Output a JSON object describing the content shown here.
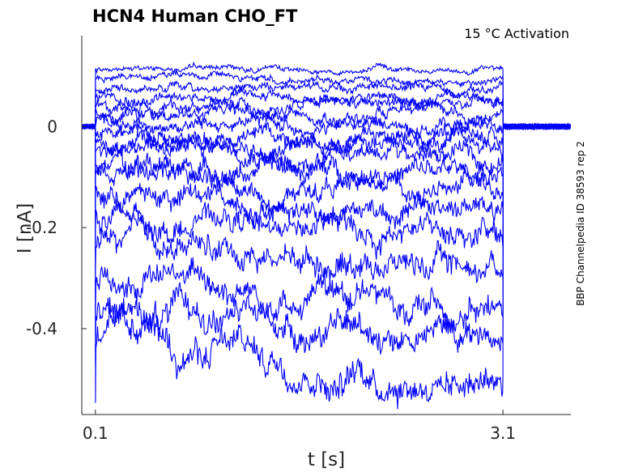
{
  "chart_data": {
    "type": "line",
    "title": "HCN4  Human  CHO_FT",
    "annotation": "15 °C  Activation",
    "side_label": "BBP Channelpedia ID 38593 rep 2",
    "xlabel": "t [s]",
    "ylabel": "I [nA]",
    "xlim": [
      0.0,
      3.6
    ],
    "ylim": [
      -0.57,
      0.18
    ],
    "x_ticks": [
      0.1,
      3.1
    ],
    "x_tick_labels": [
      "0.1",
      "3.1"
    ],
    "y_ticks": [
      0,
      -0.2,
      -0.4
    ],
    "y_tick_labels": [
      "0",
      "-0.2",
      "-0.4"
    ],
    "grid": false,
    "legend": "none",
    "color": "#0000ff",
    "stimulus": {
      "start": 0.1,
      "end": 3.1
    },
    "series": [
      {
        "values_at": [
          0.15,
          1.0,
          2.0,
          3.0
        ],
        "values": [
          0.114,
          0.114,
          0.114,
          0.114
        ]
      },
      {
        "values_at": [
          0.15,
          1.0,
          2.0,
          3.0
        ],
        "values": [
          0.095,
          0.095,
          0.095,
          0.095
        ]
      },
      {
        "values_at": [
          0.15,
          1.0,
          2.0,
          3.0
        ],
        "values": [
          0.077,
          0.077,
          0.076,
          0.076
        ]
      },
      {
        "values_at": [
          0.15,
          1.0,
          2.0,
          3.0
        ],
        "values": [
          0.058,
          0.058,
          0.057,
          0.057
        ]
      },
      {
        "values_at": [
          0.15,
          1.0,
          2.0,
          3.0
        ],
        "values": [
          0.042,
          0.041,
          0.04,
          0.04
        ]
      },
      {
        "values_at": [
          0.15,
          1.0,
          2.0,
          3.0
        ],
        "values": [
          0.024,
          0.022,
          0.021,
          0.02
        ]
      },
      {
        "values_at": [
          0.15,
          1.0,
          2.0,
          3.0
        ],
        "values": [
          0.006,
          0.004,
          0.002,
          0.001
        ]
      },
      {
        "values_at": [
          0.15,
          1.0,
          2.0,
          3.0
        ],
        "values": [
          -0.012,
          -0.015,
          -0.017,
          -0.019
        ]
      },
      {
        "values_at": [
          0.15,
          1.0,
          2.0,
          3.0
        ],
        "values": [
          -0.03,
          -0.034,
          -0.037,
          -0.04
        ]
      },
      {
        "values_at": [
          0.15,
          1.0,
          2.0,
          3.0
        ],
        "values": [
          -0.05,
          -0.056,
          -0.06,
          -0.064
        ]
      },
      {
        "values_at": [
          0.15,
          1.0,
          2.0,
          3.0
        ],
        "values": [
          -0.075,
          -0.083,
          -0.089,
          -0.094
        ]
      },
      {
        "values_at": [
          0.15,
          1.0,
          2.0,
          3.0
        ],
        "values": [
          -0.1,
          -0.112,
          -0.12,
          -0.127
        ]
      },
      {
        "values_at": [
          0.15,
          1.0,
          2.0,
          3.0
        ],
        "values": [
          -0.131,
          -0.146,
          -0.156,
          -0.165
        ]
      },
      {
        "values_at": [
          0.15,
          1.0,
          2.0,
          3.0
        ],
        "values": [
          -0.176,
          -0.19,
          -0.205,
          -0.21
        ]
      },
      {
        "values_at": [
          0.15,
          1.0,
          2.0,
          3.0
        ],
        "values": [
          -0.228,
          -0.245,
          -0.262,
          -0.275
        ]
      },
      {
        "values_at": [
          0.15,
          1.0,
          2.0,
          3.0
        ],
        "values": [
          -0.298,
          -0.31,
          -0.345,
          -0.36
        ]
      },
      {
        "values_at": [
          0.15,
          1.0,
          2.0,
          3.0
        ],
        "values": [
          -0.37,
          -0.378,
          -0.405,
          -0.41
        ]
      },
      {
        "values_at": [
          0.15,
          1.0,
          2.0,
          3.0
        ],
        "values": [
          -0.422,
          -0.445,
          -0.485,
          -0.49
        ]
      }
    ]
  }
}
